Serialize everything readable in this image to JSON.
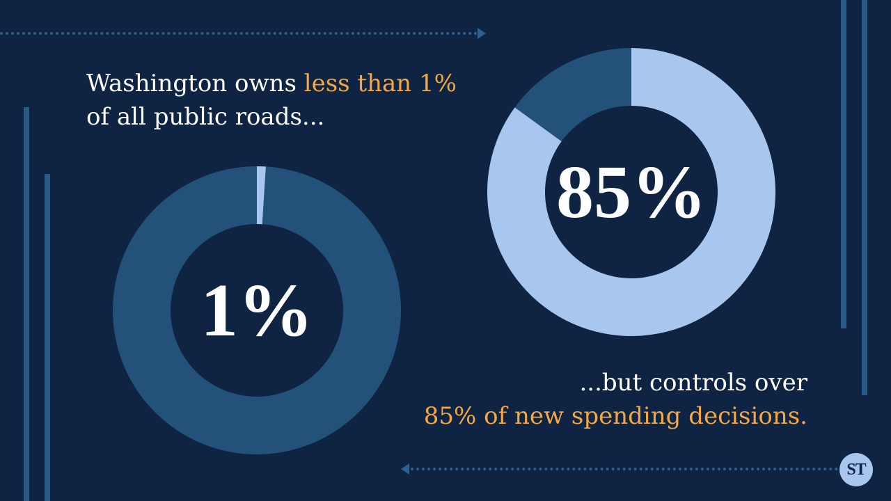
{
  "headline_top": {
    "before": "Washington owns ",
    "highlight": "less than 1%",
    "line2": "of all public roads..."
  },
  "headline_bottom": {
    "line1": "...but controls over",
    "highlight": "85% of new spending decisions."
  },
  "logo": {
    "text": "ST"
  },
  "colors": {
    "background": "#0f2342",
    "ring_dark": "#24517a",
    "ring_light": "#a8c6ee",
    "highlight": "#f4a842",
    "text": "#ffffff"
  },
  "chart_data": [
    {
      "type": "pie",
      "center_label": "1%",
      "values": [
        1,
        99
      ]
    },
    {
      "type": "pie",
      "center_label": "85%",
      "values": [
        85,
        15
      ]
    }
  ]
}
